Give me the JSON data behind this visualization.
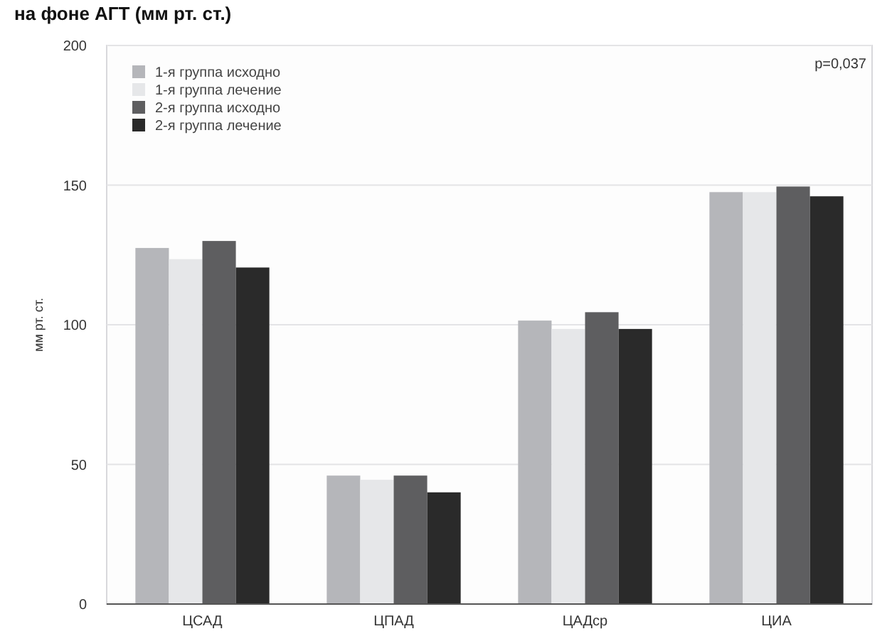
{
  "chart_data": {
    "type": "bar",
    "title": "на фоне АГТ (мм рт. ст.)",
    "ylabel": "мм рт. ст.",
    "categories": [
      "ЦСАД",
      "ЦПАД",
      "ЦАДср",
      "ЦИА"
    ],
    "series": [
      {
        "name": "1-я группа исходно",
        "color": "#b5b6ba",
        "values": [
          127.5,
          46,
          101.5,
          147.5
        ]
      },
      {
        "name": "1-я группа лечение",
        "color": "#e6e7e9",
        "values": [
          123.5,
          44.5,
          98.5,
          147.5
        ]
      },
      {
        "name": "2-я группа исходно",
        "color": "#5e5e60",
        "values": [
          130,
          46,
          104.5,
          149.5
        ]
      },
      {
        "name": "2-я группа лечение",
        "color": "#2a2a2a",
        "values": [
          120.5,
          40,
          98.5,
          146
        ]
      }
    ],
    "ylim": [
      0,
      200
    ],
    "yticks": [
      0,
      50,
      100,
      150,
      200
    ],
    "grid": "y",
    "legend": "top left",
    "annotations": [
      "p=0,037"
    ]
  }
}
